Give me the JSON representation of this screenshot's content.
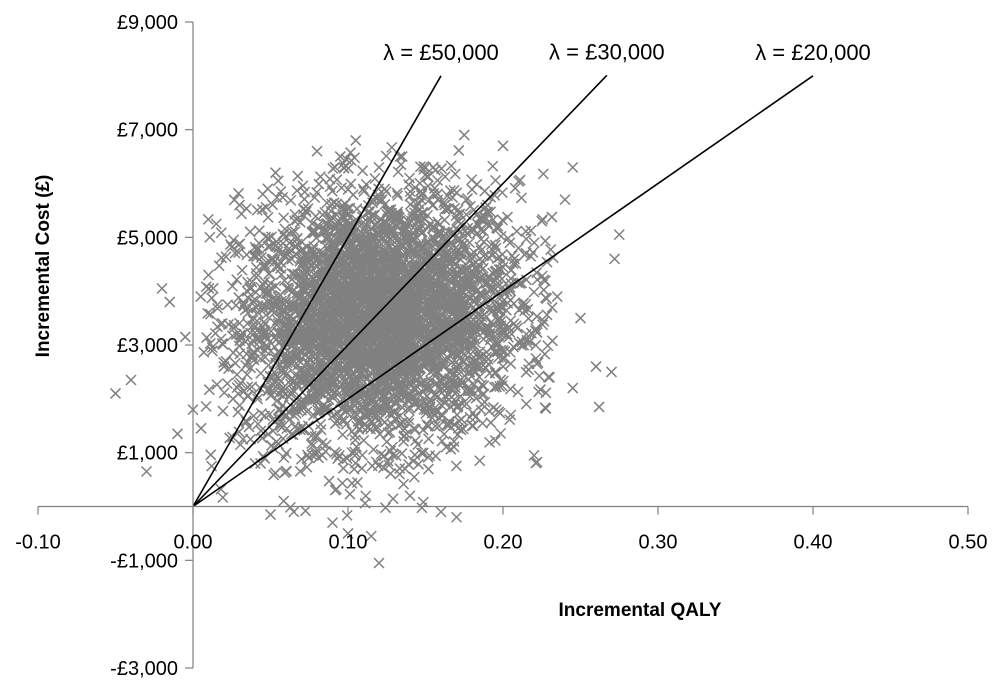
{
  "chart_data": {
    "type": "scatter",
    "title": "",
    "xlabel": "Incremental QALY",
    "ylabel": "Incremental Cost (£)",
    "xlim": [
      -0.1,
      0.5
    ],
    "ylim": [
      -3000,
      9000
    ],
    "x_ticks": [
      -0.1,
      0.0,
      0.1,
      0.2,
      0.3,
      0.4,
      0.5
    ],
    "x_tick_labels": [
      "-0.10",
      "0.00",
      "0.10",
      "0.20",
      "0.30",
      "0.40",
      "0.50"
    ],
    "y_ticks": [
      -3000,
      -1000,
      1000,
      3000,
      5000,
      7000,
      9000
    ],
    "y_tick_labels": [
      "-£3,000",
      "-£1,000",
      "£1,000",
      "£3,000",
      "£5,000",
      "£7,000",
      "£9,000"
    ],
    "grid": false,
    "marker": "x",
    "marker_color": "#808080",
    "line_color": "#000000",
    "series": [
      {
        "values": [
          [
            -0.05,
            2100
          ],
          [
            -0.04,
            2350
          ],
          [
            -0.03,
            650
          ],
          [
            -0.02,
            4050
          ],
          [
            -0.015,
            3800
          ],
          [
            -0.01,
            1350
          ],
          [
            -0.005,
            3150
          ],
          [
            0.0,
            1800
          ],
          [
            0.005,
            3900
          ],
          [
            0.01,
            4300
          ],
          [
            0.012,
            750
          ],
          [
            0.015,
            5250
          ],
          [
            0.02,
            2600
          ],
          [
            0.03,
            5600
          ],
          [
            0.035,
            4000
          ],
          [
            0.04,
            800
          ],
          [
            0.045,
            5800
          ],
          [
            0.05,
            -150
          ],
          [
            0.055,
            6050
          ],
          [
            0.06,
            3300
          ],
          [
            0.065,
            -100
          ],
          [
            0.07,
            4600
          ],
          [
            0.08,
            6600
          ],
          [
            0.085,
            2400
          ],
          [
            0.09,
            -300
          ],
          [
            0.09,
            5200
          ],
          [
            0.095,
            6500
          ],
          [
            0.1,
            -500
          ],
          [
            0.1,
            1800
          ],
          [
            0.105,
            6800
          ],
          [
            0.11,
            3600
          ],
          [
            0.115,
            -550
          ],
          [
            0.12,
            -1050
          ],
          [
            0.12,
            6300
          ],
          [
            0.125,
            1200
          ],
          [
            0.13,
            4500
          ],
          [
            0.135,
            6500
          ],
          [
            0.14,
            200
          ],
          [
            0.145,
            2900
          ],
          [
            0.15,
            6300
          ],
          [
            0.155,
            5600
          ],
          [
            0.16,
            -100
          ],
          [
            0.165,
            3700
          ],
          [
            0.17,
            -200
          ],
          [
            0.175,
            6900
          ],
          [
            0.18,
            1500
          ],
          [
            0.185,
            850
          ],
          [
            0.19,
            5600
          ],
          [
            0.195,
            4200
          ],
          [
            0.2,
            6700
          ],
          [
            0.2,
            2600
          ],
          [
            0.205,
            1700
          ],
          [
            0.21,
            4800
          ],
          [
            0.215,
            3200
          ],
          [
            0.22,
            950
          ],
          [
            0.225,
            5300
          ],
          [
            0.23,
            2400
          ],
          [
            0.235,
            3900
          ],
          [
            0.24,
            5700
          ],
          [
            0.245,
            2200
          ],
          [
            0.245,
            6300
          ],
          [
            0.25,
            3500
          ],
          [
            0.26,
            2600
          ],
          [
            0.262,
            1850
          ],
          [
            0.27,
            2500
          ],
          [
            0.272,
            4600
          ],
          [
            0.275,
            5050
          ]
        ]
      }
    ],
    "lines": [
      {
        "label": "λ = £50,000",
        "slope": 50000,
        "x_end": 0.16
      },
      {
        "label": "λ = £30,000",
        "slope": 30000,
        "x_end": 0.267
      },
      {
        "label": "λ = £20,000",
        "slope": 20000,
        "x_end": 0.4
      }
    ]
  }
}
